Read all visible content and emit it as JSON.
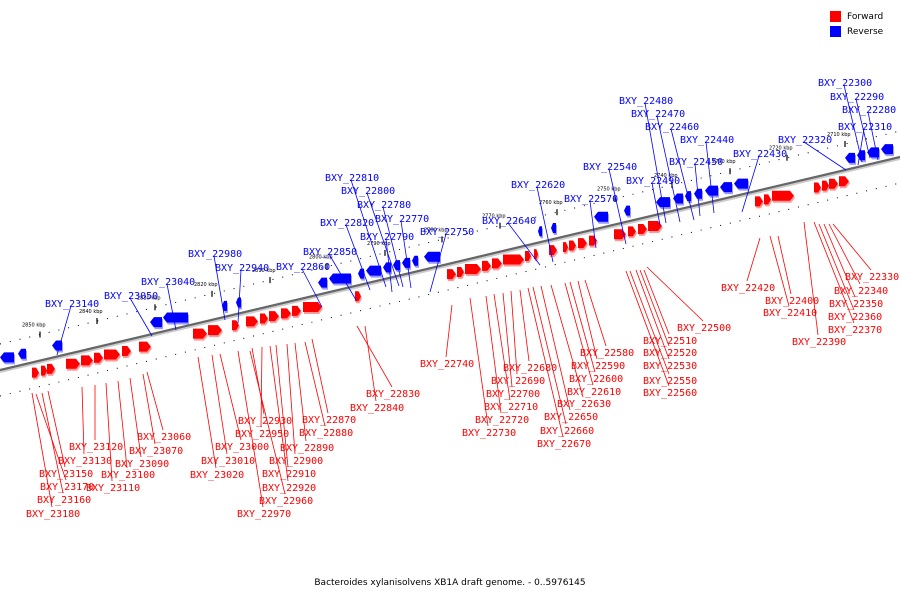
{
  "legend": {
    "forward": {
      "label": "Forward",
      "color": "#ff0000"
    },
    "reverse": {
      "label": "Reverse",
      "color": "#0000ff"
    }
  },
  "caption": "Bacteroides xylanisolvens XB1A draft genome. - 0..5976145",
  "ticks": [
    "2850 kbp",
    "2840 kbp",
    "2830 kbp",
    "2820 kbp",
    "2810 kbp",
    "2800 kbp",
    "2790 kbp",
    "2780 kbp",
    "2770 kbp",
    "2760 kbp",
    "2750 kbp",
    "2740 kbp",
    "2730 kbp",
    "2720 kbp",
    "2710 kbp"
  ],
  "reverse_genes": [
    "BXY_22300",
    "BXY_22290",
    "BXY_22280",
    "BXY_22310",
    "BXY_22320",
    "BXY_22480",
    "BXY_22470",
    "BXY_22460",
    "BXY_22440",
    "BXY_22450",
    "BXY_22430",
    "BXY_22490",
    "BXY_22540",
    "BXY_22570",
    "BXY_22620",
    "BXY_22640",
    "BXY_22810",
    "BXY_22800",
    "BXY_22780",
    "BXY_22770",
    "BXY_22820",
    "BXY_22790",
    "BXY_22750",
    "BXY_22850",
    "BXY_22860",
    "BXY_22980",
    "BXY_22940",
    "BXY_23040",
    "BXY_23050",
    "BXY_23140"
  ],
  "forward_genes": [
    "BXY_22330",
    "BXY_22340",
    "BXY_22350",
    "BXY_22360",
    "BXY_22370",
    "BXY_22390",
    "BXY_22420",
    "BXY_22400",
    "BXY_22410",
    "BXY_22500",
    "BXY_22510",
    "BXY_22520",
    "BXY_22530",
    "BXY_22550",
    "BXY_22560",
    "BXY_22580",
    "BXY_22590",
    "BXY_22600",
    "BXY_22610",
    "BXY_22630",
    "BXY_22650",
    "BXY_22660",
    "BXY_22670",
    "BXY_22680",
    "BXY_22690",
    "BXY_22700",
    "BXY_22710",
    "BXY_22720",
    "BXY_22730",
    "BXY_22740",
    "BXY_22830",
    "BXY_22840",
    "BXY_22870",
    "BXY_22880",
    "BXY_22890",
    "BXY_22900",
    "BXY_22910",
    "BXY_22920",
    "BXY_22930",
    "BXY_22950",
    "BXY_22960",
    "BXY_22970",
    "BXY_23000",
    "BXY_23010",
    "BXY_23020",
    "BXY_23060",
    "BXY_23070",
    "BXY_23090",
    "BXY_23100",
    "BXY_23110",
    "BXY_23120",
    "BXY_23130",
    "BXY_23150",
    "BXY_23160",
    "BXY_23170",
    "BXY_23180"
  ]
}
